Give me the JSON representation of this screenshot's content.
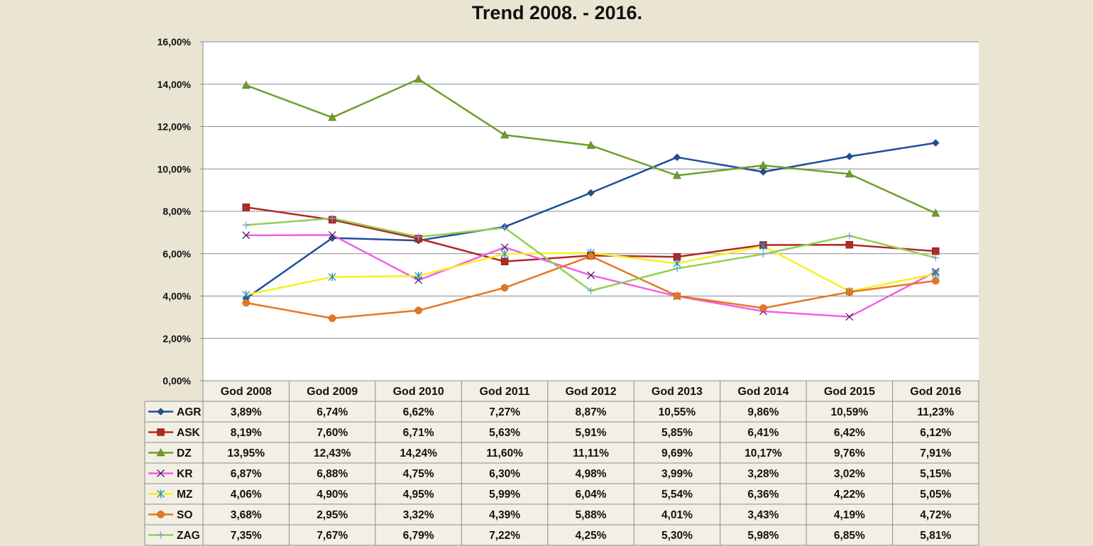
{
  "chart_data": {
    "type": "line",
    "title": "Trend 2008. - 2016.",
    "xlabel": "",
    "ylabel": "",
    "ylim": [
      0,
      16
    ],
    "y_ticks": [
      "0,00%",
      "2,00%",
      "4,00%",
      "6,00%",
      "8,00%",
      "10,00%",
      "12,00%",
      "14,00%",
      "16,00%"
    ],
    "grid": true,
    "legend_placement": "data-table-left",
    "categories": [
      "God 2008",
      "God 2009",
      "God 2010",
      "God 2011",
      "God 2012",
      "God 2013",
      "God 2014",
      "God 2015",
      "God 2016"
    ],
    "series": [
      {
        "name": "AGR",
        "color": "#1f4e9c",
        "marker": "diamond",
        "values": [
          3.89,
          6.74,
          6.62,
          7.27,
          8.87,
          10.55,
          9.86,
          10.59,
          11.23
        ],
        "labels": [
          "3,89%",
          "6,74%",
          "6,62%",
          "7,27%",
          "8,87%",
          "10,55%",
          "9,86%",
          "10,59%",
          "11,23%"
        ]
      },
      {
        "name": "ASK",
        "color": "#b02a24",
        "marker": "square",
        "values": [
          8.19,
          7.6,
          6.71,
          5.63,
          5.91,
          5.85,
          6.41,
          6.42,
          6.12
        ],
        "labels": [
          "8,19%",
          "7,60%",
          "6,71%",
          "5,63%",
          "5,91%",
          "5,85%",
          "6,41%",
          "6,42%",
          "6,12%"
        ]
      },
      {
        "name": "DZ",
        "color": "#6e9e2c",
        "marker": "triangle",
        "values": [
          13.95,
          12.43,
          14.24,
          11.6,
          11.11,
          9.69,
          10.17,
          9.76,
          7.91
        ],
        "labels": [
          "13,95%",
          "12,43%",
          "14,24%",
          "11,60%",
          "11,11%",
          "9,69%",
          "10,17%",
          "9,76%",
          "7,91%"
        ]
      },
      {
        "name": "KR",
        "color": "#f25ee8",
        "marker": "x",
        "values": [
          6.87,
          6.88,
          4.75,
          6.3,
          4.98,
          3.99,
          3.28,
          3.02,
          5.15
        ],
        "labels": [
          "6,87%",
          "6,88%",
          "4,75%",
          "6,30%",
          "4,98%",
          "3,99%",
          "3,28%",
          "3,02%",
          "5,15%"
        ]
      },
      {
        "name": "MZ",
        "color": "#f7f01f",
        "marker": "star",
        "values": [
          4.06,
          4.9,
          4.95,
          5.99,
          6.04,
          5.54,
          6.36,
          4.22,
          5.05
        ],
        "labels": [
          "4,06%",
          "4,90%",
          "4,95%",
          "5,99%",
          "6,04%",
          "5,54%",
          "6,36%",
          "4,22%",
          "5,05%"
        ]
      },
      {
        "name": "SO",
        "color": "#e67722",
        "marker": "circle",
        "values": [
          3.68,
          2.95,
          3.32,
          4.39,
          5.88,
          4.01,
          3.43,
          4.19,
          4.72
        ],
        "labels": [
          "3,68%",
          "2,95%",
          "3,32%",
          "4,39%",
          "5,88%",
          "4,01%",
          "3,43%",
          "4,19%",
          "4,72%"
        ]
      },
      {
        "name": "ZAG",
        "color": "#92d04f",
        "marker": "plus",
        "values": [
          7.35,
          7.67,
          6.79,
          7.22,
          4.25,
          5.3,
          5.98,
          6.85,
          5.81
        ],
        "labels": [
          "7,35%",
          "7,67%",
          "6,79%",
          "7,22%",
          "4,25%",
          "5,30%",
          "5,98%",
          "6,85%",
          "5,81%"
        ]
      }
    ]
  }
}
